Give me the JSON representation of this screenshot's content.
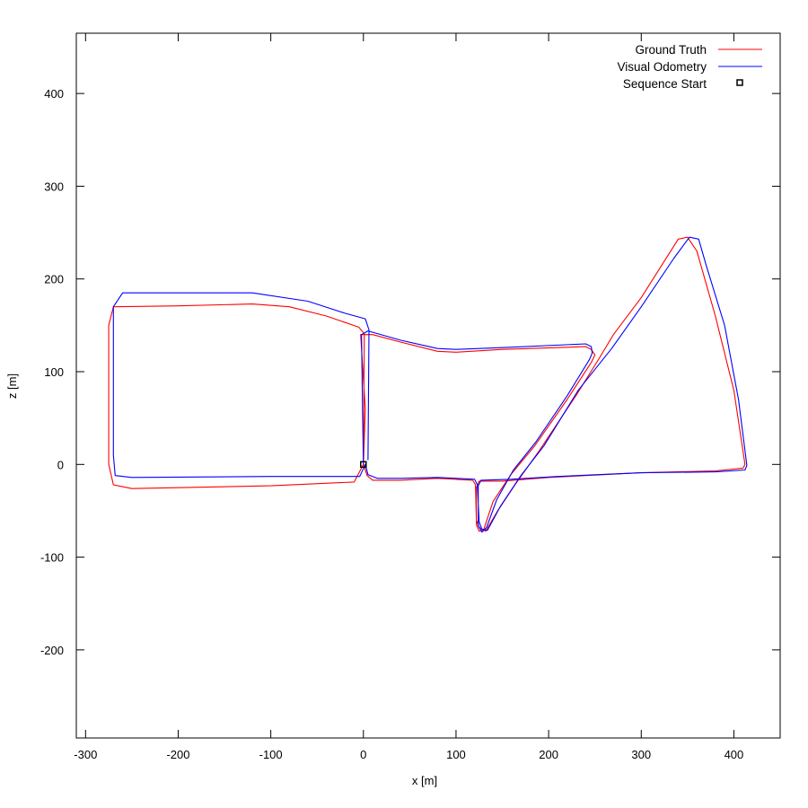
{
  "chart_data": {
    "type": "line",
    "title": "",
    "xlabel": "x [m]",
    "ylabel": "z [m]",
    "xlim": [
      -310,
      450
    ],
    "ylim": [
      -295,
      465
    ],
    "x_ticks": [
      -300,
      -200,
      -100,
      0,
      100,
      200,
      300,
      400
    ],
    "y_ticks": [
      -200,
      -100,
      0,
      100,
      200,
      300,
      400
    ],
    "grid": false,
    "legend_position": "top-right",
    "series": [
      {
        "name": "Ground Truth",
        "color": "#ff0000",
        "points": [
          [
            0,
            0
          ],
          [
            2,
            60
          ],
          [
            -3,
            140
          ],
          [
            10,
            140
          ],
          [
            40,
            132
          ],
          [
            80,
            122
          ],
          [
            100,
            121
          ],
          [
            150,
            124
          ],
          [
            240,
            127
          ],
          [
            246,
            124
          ],
          [
            250,
            118
          ],
          [
            246,
            110
          ],
          [
            220,
            70
          ],
          [
            185,
            20
          ],
          [
            160,
            -10
          ],
          [
            140,
            -40
          ],
          [
            130,
            -70
          ],
          [
            125,
            -72
          ],
          [
            122,
            -65
          ],
          [
            122,
            -25
          ],
          [
            125,
            -18
          ],
          [
            150,
            -18
          ],
          [
            200,
            -14
          ],
          [
            300,
            -9
          ],
          [
            380,
            -7
          ],
          [
            410,
            -4
          ],
          [
            412,
            0
          ],
          [
            400,
            80
          ],
          [
            380,
            160
          ],
          [
            360,
            230
          ],
          [
            350,
            245
          ],
          [
            340,
            243
          ],
          [
            300,
            180
          ],
          [
            270,
            140
          ],
          [
            255,
            115
          ],
          [
            230,
            75
          ],
          [
            190,
            15
          ],
          [
            165,
            -20
          ],
          [
            145,
            -50
          ],
          [
            132,
            -72
          ],
          [
            125,
            -68
          ],
          [
            122,
            -60
          ],
          [
            121,
            -22
          ],
          [
            118,
            -17
          ],
          [
            80,
            -15
          ],
          [
            40,
            -17
          ],
          [
            10,
            -17
          ],
          [
            4,
            -12
          ],
          [
            0,
            0
          ],
          [
            -10,
            -19
          ],
          [
            -100,
            -23
          ],
          [
            -250,
            -26
          ],
          [
            -270,
            -22
          ],
          [
            -275,
            0
          ],
          [
            -275,
            100
          ],
          [
            -275,
            150
          ],
          [
            -270,
            170
          ],
          [
            -200,
            171
          ],
          [
            -120,
            173
          ],
          [
            -80,
            170
          ],
          [
            -40,
            160
          ],
          [
            -5,
            148
          ],
          [
            1,
            141
          ],
          [
            0,
            5
          ]
        ]
      },
      {
        "name": "Visual Odometry",
        "color": "#0000ff",
        "points": [
          [
            0,
            0
          ],
          [
            -1,
            60
          ],
          [
            -2,
            140
          ],
          [
            5,
            144
          ],
          [
            40,
            134
          ],
          [
            80,
            125
          ],
          [
            100,
            124
          ],
          [
            150,
            126
          ],
          [
            240,
            130
          ],
          [
            246,
            127
          ],
          [
            247,
            120
          ],
          [
            244,
            113
          ],
          [
            220,
            74
          ],
          [
            186,
            24
          ],
          [
            162,
            -6
          ],
          [
            144,
            -38
          ],
          [
            133,
            -68
          ],
          [
            128,
            -73
          ],
          [
            124,
            -66
          ],
          [
            124,
            -23
          ],
          [
            127,
            -17
          ],
          [
            160,
            -16
          ],
          [
            210,
            -13
          ],
          [
            300,
            -9
          ],
          [
            380,
            -8
          ],
          [
            412,
            -6
          ],
          [
            414,
            -1
          ],
          [
            405,
            70
          ],
          [
            390,
            150
          ],
          [
            370,
            215
          ],
          [
            362,
            243
          ],
          [
            352,
            245
          ],
          [
            335,
            222
          ],
          [
            300,
            170
          ],
          [
            268,
            125
          ],
          [
            232,
            80
          ],
          [
            195,
            20
          ],
          [
            170,
            -12
          ],
          [
            148,
            -45
          ],
          [
            134,
            -71
          ],
          [
            128,
            -70
          ],
          [
            125,
            -62
          ],
          [
            123,
            -22
          ],
          [
            120,
            -16
          ],
          [
            80,
            -14
          ],
          [
            40,
            -15
          ],
          [
            15,
            -15
          ],
          [
            5,
            -11
          ],
          [
            2,
            0
          ],
          [
            -4,
            -13
          ],
          [
            -100,
            -13
          ],
          [
            -250,
            -14
          ],
          [
            -268,
            -12
          ],
          [
            -270,
            10
          ],
          [
            -270,
            100
          ],
          [
            -270,
            170
          ],
          [
            -260,
            185
          ],
          [
            -200,
            185
          ],
          [
            -120,
            185
          ],
          [
            -60,
            176
          ],
          [
            -20,
            163
          ],
          [
            2,
            157
          ],
          [
            6,
            145
          ],
          [
            5,
            5
          ]
        ]
      }
    ],
    "markers": [
      {
        "name": "Sequence Start",
        "x": 0,
        "y": 0,
        "shape": "square",
        "color": "#000000"
      }
    ]
  }
}
